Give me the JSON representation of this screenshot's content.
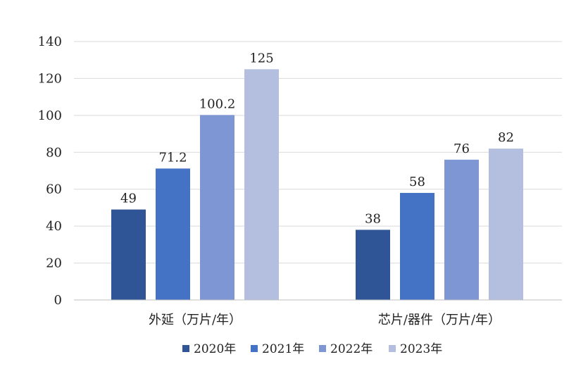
{
  "chart_data": {
    "type": "bar",
    "categories": [
      "外延（万片/年）",
      "芯片/器件（万片/年）"
    ],
    "series": [
      {
        "name": "2020年",
        "values": [
          49,
          38
        ],
        "color": "#2f5597"
      },
      {
        "name": "2021年",
        "values": [
          71.2,
          58
        ],
        "color": "#4472c4"
      },
      {
        "name": "2022年",
        "values": [
          100.2,
          76
        ],
        "color": "#7f96d4"
      },
      {
        "name": "2023年",
        "values": [
          125,
          82
        ],
        "color": "#b4bfe0"
      }
    ],
    "value_labels": [
      [
        "49",
        "38"
      ],
      [
        "71.2",
        "58"
      ],
      [
        "100.2",
        "76"
      ],
      [
        "125",
        "82"
      ]
    ],
    "yticks": [
      0,
      20,
      40,
      60,
      80,
      100,
      120,
      140
    ],
    "ylim": [
      0,
      140
    ],
    "grid": true,
    "legend_position": "bottom"
  }
}
